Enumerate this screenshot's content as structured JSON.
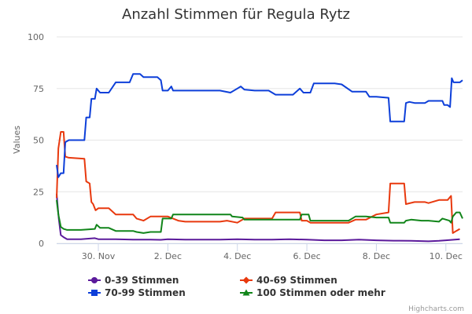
{
  "chart_data": {
    "type": "line",
    "title": "Anzahl Stimmen für Regula Rytz",
    "ylabel": "Values",
    "ylim": [
      0,
      100
    ],
    "yticks": [
      0,
      25,
      50,
      75,
      100
    ],
    "x_ticks": [
      {
        "label": "30. Nov",
        "x": 30.5
      },
      {
        "label": "2. Dec",
        "x": 32.5
      },
      {
        "label": "4. Dec",
        "x": 34.5
      },
      {
        "label": "6. Dec",
        "x": 36.5
      },
      {
        "label": "8. Dec",
        "x": 38.5
      },
      {
        "label": "10. Dec",
        "x": 40.5
      }
    ],
    "x_range": [
      29.3,
      40.98
    ],
    "grid": true,
    "legend_position": "bottom",
    "credits": "Highcharts.com",
    "series": [
      {
        "name": "0-39 Stimmen",
        "color": "#5b1a9b",
        "marker": "circle",
        "points": [
          [
            29.3,
            24
          ],
          [
            29.36,
            12
          ],
          [
            29.42,
            4
          ],
          [
            29.5,
            3
          ],
          [
            29.6,
            2
          ],
          [
            29.8,
            2
          ],
          [
            30.0,
            2
          ],
          [
            30.4,
            2.5
          ],
          [
            30.5,
            2
          ],
          [
            31,
            2
          ],
          [
            31.5,
            1.8
          ],
          [
            32,
            1.8
          ],
          [
            32.3,
            1.7
          ],
          [
            32.5,
            2
          ],
          [
            33,
            1.8
          ],
          [
            33.5,
            1.8
          ],
          [
            34,
            1.8
          ],
          [
            34.5,
            2
          ],
          [
            35,
            1.8
          ],
          [
            35.5,
            1.8
          ],
          [
            36,
            2
          ],
          [
            36.5,
            1.8
          ],
          [
            37,
            1.5
          ],
          [
            37.5,
            1.5
          ],
          [
            38,
            1.8
          ],
          [
            38.5,
            1.5
          ],
          [
            39,
            1.3
          ],
          [
            39.5,
            1.2
          ],
          [
            40,
            1
          ],
          [
            40.3,
            1.2
          ],
          [
            40.5,
            1.5
          ],
          [
            40.9,
            2
          ]
        ]
      },
      {
        "name": "40-69 Stimmen",
        "color": "#e8390e",
        "marker": "diamond",
        "points": [
          [
            29.3,
            22
          ],
          [
            29.35,
            46
          ],
          [
            29.42,
            54
          ],
          [
            29.5,
            54
          ],
          [
            29.55,
            42
          ],
          [
            29.65,
            41.5
          ],
          [
            30.1,
            41
          ],
          [
            30.15,
            30
          ],
          [
            30.25,
            29
          ],
          [
            30.3,
            20
          ],
          [
            30.35,
            19
          ],
          [
            30.42,
            16
          ],
          [
            30.5,
            17
          ],
          [
            30.8,
            17
          ],
          [
            31.0,
            14
          ],
          [
            31.5,
            14
          ],
          [
            31.6,
            12
          ],
          [
            31.8,
            11
          ],
          [
            32.0,
            13
          ],
          [
            32.5,
            13
          ],
          [
            32.65,
            12
          ],
          [
            32.8,
            11
          ],
          [
            33.0,
            10.5
          ],
          [
            33.5,
            10.5
          ],
          [
            34,
            10.5
          ],
          [
            34.2,
            11
          ],
          [
            34.5,
            10
          ],
          [
            34.7,
            12
          ],
          [
            35,
            12
          ],
          [
            35.5,
            12
          ],
          [
            35.6,
            15
          ],
          [
            36,
            15
          ],
          [
            36.3,
            15
          ],
          [
            36.35,
            11
          ],
          [
            36.5,
            11
          ],
          [
            36.6,
            10
          ],
          [
            37,
            10
          ],
          [
            37.5,
            10
          ],
          [
            37.7,
            10
          ],
          [
            37.9,
            11.5
          ],
          [
            38.2,
            11.5
          ],
          [
            38.5,
            14
          ],
          [
            38.85,
            15
          ],
          [
            38.9,
            29
          ],
          [
            39.3,
            29
          ],
          [
            39.35,
            19
          ],
          [
            39.6,
            20
          ],
          [
            39.9,
            20
          ],
          [
            40,
            19.5
          ],
          [
            40.3,
            21
          ],
          [
            40.55,
            21
          ],
          [
            40.65,
            23
          ],
          [
            40.7,
            5
          ],
          [
            40.8,
            6
          ],
          [
            40.9,
            7
          ]
        ]
      },
      {
        "name": "70-99 Stimmen",
        "color": "#0d3fd9",
        "marker": "square",
        "points": [
          [
            29.3,
            38
          ],
          [
            29.35,
            32
          ],
          [
            29.42,
            34
          ],
          [
            29.5,
            34
          ],
          [
            29.55,
            49
          ],
          [
            29.65,
            50
          ],
          [
            30.1,
            50
          ],
          [
            30.15,
            61
          ],
          [
            30.25,
            61
          ],
          [
            30.3,
            70
          ],
          [
            30.4,
            70
          ],
          [
            30.45,
            75
          ],
          [
            30.55,
            73
          ],
          [
            30.8,
            73
          ],
          [
            31.0,
            78
          ],
          [
            31.4,
            78
          ],
          [
            31.5,
            82
          ],
          [
            31.7,
            82
          ],
          [
            31.8,
            80.5
          ],
          [
            32.2,
            80.5
          ],
          [
            32.3,
            79
          ],
          [
            32.35,
            74
          ],
          [
            32.5,
            74
          ],
          [
            32.6,
            76
          ],
          [
            32.65,
            74
          ],
          [
            33,
            74
          ],
          [
            33.5,
            74
          ],
          [
            34,
            74
          ],
          [
            34.3,
            73
          ],
          [
            34.5,
            75
          ],
          [
            34.6,
            76
          ],
          [
            34.7,
            74.5
          ],
          [
            35,
            74
          ],
          [
            35.4,
            74
          ],
          [
            35.6,
            72
          ],
          [
            36,
            72
          ],
          [
            36.1,
            72
          ],
          [
            36.3,
            75
          ],
          [
            36.4,
            73
          ],
          [
            36.6,
            73
          ],
          [
            36.7,
            77.5
          ],
          [
            37.3,
            77.5
          ],
          [
            37.5,
            77
          ],
          [
            37.8,
            73.5
          ],
          [
            38.2,
            73.5
          ],
          [
            38.3,
            71
          ],
          [
            38.5,
            71
          ],
          [
            38.85,
            70.5
          ],
          [
            38.9,
            59
          ],
          [
            39.3,
            59
          ],
          [
            39.35,
            68
          ],
          [
            39.45,
            68.5
          ],
          [
            39.6,
            68
          ],
          [
            39.9,
            68
          ],
          [
            40.0,
            69
          ],
          [
            40.4,
            69
          ],
          [
            40.45,
            67
          ],
          [
            40.55,
            67
          ],
          [
            40.62,
            66
          ],
          [
            40.67,
            80
          ],
          [
            40.72,
            78
          ],
          [
            40.9,
            78
          ],
          [
            40.98,
            79
          ]
        ]
      },
      {
        "name": "100 Stimmen oder mehr",
        "color": "#11851a",
        "marker": "triangle",
        "points": [
          [
            29.3,
            21
          ],
          [
            29.35,
            14
          ],
          [
            29.42,
            8
          ],
          [
            29.5,
            7
          ],
          [
            29.6,
            6.5
          ],
          [
            30.0,
            6.5
          ],
          [
            30.4,
            7
          ],
          [
            30.45,
            9
          ],
          [
            30.55,
            7.5
          ],
          [
            30.8,
            7.5
          ],
          [
            31.0,
            6
          ],
          [
            31.5,
            6
          ],
          [
            31.6,
            5.5
          ],
          [
            31.8,
            5
          ],
          [
            32.0,
            5.5
          ],
          [
            32.3,
            5.5
          ],
          [
            32.35,
            12
          ],
          [
            32.6,
            12
          ],
          [
            32.65,
            14
          ],
          [
            33,
            14
          ],
          [
            33.5,
            14
          ],
          [
            34,
            14
          ],
          [
            34.3,
            14
          ],
          [
            34.35,
            13
          ],
          [
            34.65,
            12.5
          ],
          [
            34.7,
            11.5
          ],
          [
            35,
            11.5
          ],
          [
            35.5,
            11.5
          ],
          [
            36,
            11.5
          ],
          [
            36.3,
            11.5
          ],
          [
            36.35,
            14
          ],
          [
            36.55,
            14
          ],
          [
            36.6,
            11
          ],
          [
            37,
            11
          ],
          [
            37.5,
            11
          ],
          [
            37.7,
            11
          ],
          [
            37.9,
            13
          ],
          [
            38.2,
            13
          ],
          [
            38.5,
            12.5
          ],
          [
            38.85,
            12.5
          ],
          [
            38.9,
            10
          ],
          [
            39.3,
            10
          ],
          [
            39.35,
            11
          ],
          [
            39.5,
            11.5
          ],
          [
            39.8,
            11
          ],
          [
            40.0,
            11
          ],
          [
            40.3,
            10.5
          ],
          [
            40.4,
            12
          ],
          [
            40.6,
            11
          ],
          [
            40.65,
            10
          ],
          [
            40.7,
            13
          ],
          [
            40.8,
            15
          ],
          [
            40.9,
            15
          ],
          [
            40.98,
            12
          ]
        ]
      }
    ]
  }
}
